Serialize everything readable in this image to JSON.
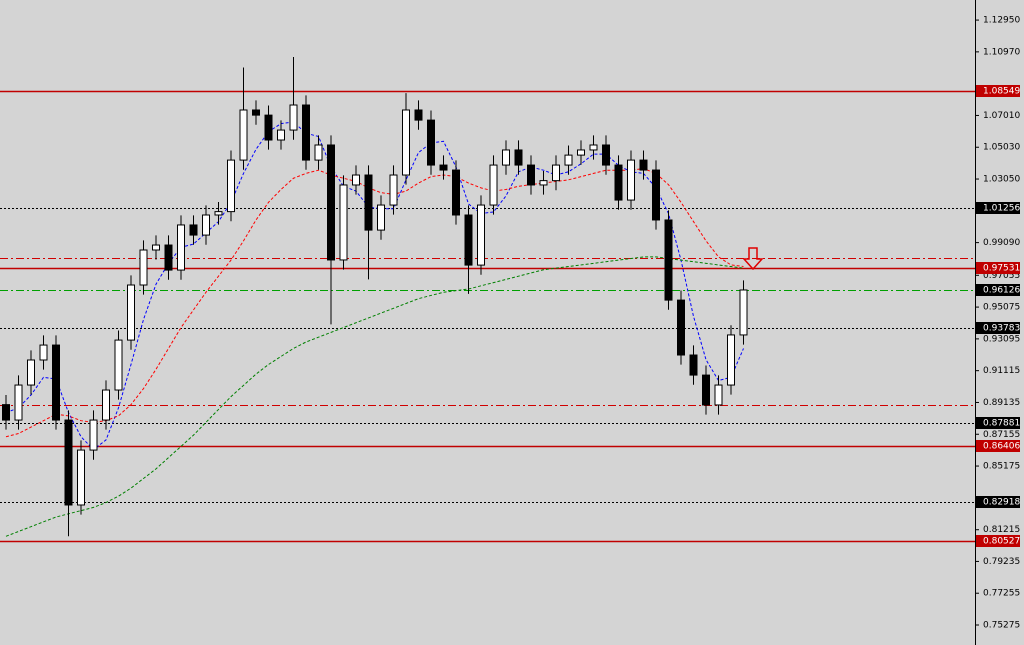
{
  "chart_data": {
    "type": "candlestick",
    "ylim": [
      0.7403,
      1.142
    ],
    "yticks": [
      {
        "value": 1.1295,
        "label": "1.12950"
      },
      {
        "value": 1.1097,
        "label": "1.10970"
      },
      {
        "value": 1.0701,
        "label": "1.07010"
      },
      {
        "value": 1.0503,
        "label": "1.05030"
      },
      {
        "value": 1.0305,
        "label": "1.03050"
      },
      {
        "value": 0.9909,
        "label": "0.99090"
      },
      0.97055,
      0.95075,
      0.93095,
      0.91115,
      0.89135,
      0.87155,
      0.85175,
      {
        "value": 0.8121,
        "label": "0.81215"
      },
      0.79235,
      0.77255,
      0.75275
    ],
    "bull_color": "#ffffff",
    "bear_color": "#000000",
    "open": [
      0.89,
      0.8804,
      0.9022,
      0.9178,
      0.9271,
      0.8804,
      0.8275,
      0.8617,
      0.8804,
      0.8991,
      0.9302,
      0.9645,
      0.9863,
      0.9894,
      0.9738,
      1.0019,
      0.9956,
      1.0081,
      1.0102,
      1.0423,
      1.0735,
      1.0703,
      1.0548,
      1.061,
      1.0766,
      1.0423,
      1.0517,
      0.9801,
      1.0268,
      1.033,
      0.9987,
      1.0143,
      1.033,
      1.0735,
      1.0672,
      1.0392,
      1.0361,
      1.0081,
      0.9769,
      1.0143,
      1.0392,
      1.0486,
      1.0392,
      1.0268,
      1.0295,
      1.0392,
      1.0454,
      1.0486,
      1.0517,
      1.0392,
      1.0174,
      1.0423,
      1.0361,
      1.005,
      0.9551,
      0.9209,
      0.9084,
      0.8898,
      0.9022,
      0.9334
    ],
    "high": [
      0.896,
      0.9082,
      0.9238,
      0.9331,
      0.9331,
      0.8864,
      0.8677,
      0.8864,
      0.9051,
      0.9362,
      0.9705,
      0.9923,
      0.9954,
      0.9954,
      1.0079,
      1.0079,
      1.0141,
      1.0162,
      1.0483,
      1.1,
      1.0795,
      1.0763,
      1.067,
      1.1065,
      1.0826,
      1.0577,
      1.0577,
      1.0328,
      1.039,
      1.039,
      1.0203,
      1.039,
      1.084,
      1.0795,
      1.0732,
      1.0452,
      1.0421,
      1.0141,
      1.0203,
      1.0452,
      1.0546,
      1.0546,
      1.0452,
      1.0355,
      1.0452,
      1.0514,
      1.0546,
      1.0577,
      1.0577,
      1.0452,
      1.0483,
      1.0483,
      1.0421,
      1.011,
      0.9611,
      0.9269,
      0.9144,
      0.9082,
      0.9394,
      0.9674
    ],
    "low": [
      0.8744,
      0.8744,
      0.8962,
      0.9118,
      0.8744,
      0.808,
      0.8215,
      0.8557,
      0.8744,
      0.8931,
      0.9242,
      0.9585,
      0.9803,
      0.9678,
      0.9678,
      0.9896,
      0.9896,
      1.0021,
      1.0042,
      1.0363,
      1.0643,
      1.0488,
      1.0488,
      1.055,
      1.0363,
      1.0363,
      0.94,
      0.9741,
      1.0208,
      0.968,
      0.9927,
      1.0083,
      1.027,
      1.0612,
      1.0332,
      1.0301,
      1.0021,
      0.959,
      0.9709,
      1.0083,
      1.0332,
      1.0332,
      1.0208,
      1.0208,
      1.0235,
      1.0332,
      1.0394,
      1.0426,
      1.0332,
      1.0114,
      1.0114,
      1.0301,
      0.999,
      0.9491,
      0.9149,
      0.9024,
      0.8838,
      0.8838,
      0.8962,
      0.9274
    ],
    "close": [
      0.8804,
      0.9022,
      0.9178,
      0.9271,
      0.8804,
      0.8275,
      0.8617,
      0.8804,
      0.8991,
      0.9302,
      0.9645,
      0.9863,
      0.9894,
      0.9738,
      1.0019,
      0.9956,
      1.0081,
      1.0102,
      1.0423,
      1.0735,
      1.0703,
      1.0548,
      1.061,
      1.0766,
      1.0423,
      1.0517,
      0.9801,
      1.0268,
      1.033,
      0.9987,
      1.0143,
      1.033,
      1.0735,
      1.0672,
      1.0392,
      1.0361,
      1.0081,
      0.9769,
      1.0143,
      1.0392,
      1.0486,
      1.0392,
      1.0268,
      1.0295,
      1.0392,
      1.0454,
      1.0486,
      1.0517,
      1.0392,
      1.0174,
      1.0423,
      1.0361,
      1.005,
      0.9551,
      0.9209,
      0.9084,
      0.8898,
      0.9022,
      0.9334,
      0.9614
    ],
    "series": [
      {
        "color": "#0000ff",
        "values": [
          0.885,
          0.888,
          0.896,
          0.907,
          0.906,
          0.885,
          0.87,
          0.862,
          0.868,
          0.888,
          0.915,
          0.943,
          0.965,
          0.978,
          0.988,
          0.99,
          0.997,
          1.004,
          1.016,
          1.034,
          1.049,
          1.06,
          1.065,
          1.066,
          1.059,
          1.057,
          1.038,
          1.026,
          1.023,
          1.013,
          1.012,
          1.012,
          1.03,
          1.047,
          1.053,
          1.054,
          1.038,
          1.015,
          1.009,
          1.01,
          1.02,
          1.035,
          1.038,
          1.036,
          1.033,
          1.035,
          1.04,
          1.046,
          1.046,
          1.039,
          1.035,
          1.034,
          1.025,
          1.009,
          0.98,
          0.945,
          0.918,
          0.905,
          0.907,
          0.925
        ]
      },
      {
        "color": "#ff0000",
        "values": [
          0.87,
          0.872,
          0.876,
          0.88,
          0.884,
          0.883,
          0.88,
          0.879,
          0.88,
          0.883,
          0.89,
          0.9,
          0.912,
          0.925,
          0.938,
          0.949,
          0.96,
          0.97,
          0.98,
          0.992,
          1.005,
          1.016,
          1.024,
          1.031,
          1.034,
          1.036,
          1.033,
          1.031,
          1.029,
          1.025,
          1.022,
          1.021,
          1.023,
          1.028,
          1.032,
          1.033,
          1.032,
          1.028,
          1.025,
          1.023,
          1.024,
          1.026,
          1.027,
          1.028,
          1.029,
          1.03,
          1.032,
          1.034,
          1.036,
          1.036,
          1.036,
          1.037,
          1.034,
          1.027,
          1.016,
          1.004,
          0.992,
          0.982,
          0.977,
          0.976
        ]
      },
      {
        "color": "#008000",
        "values": [
          0.808,
          0.811,
          0.814,
          0.817,
          0.82,
          0.822,
          0.824,
          0.826,
          0.829,
          0.833,
          0.838,
          0.844,
          0.85,
          0.857,
          0.864,
          0.871,
          0.879,
          0.887,
          0.895,
          0.902,
          0.909,
          0.915,
          0.92,
          0.925,
          0.929,
          0.932,
          0.935,
          0.938,
          0.941,
          0.944,
          0.947,
          0.95,
          0.953,
          0.956,
          0.958,
          0.96,
          0.961,
          0.962,
          0.964,
          0.966,
          0.968,
          0.97,
          0.972,
          0.974,
          0.975,
          0.976,
          0.977,
          0.978,
          0.979,
          0.98,
          0.981,
          0.982,
          0.982,
          0.981,
          0.98,
          0.979,
          0.978,
          0.977,
          0.976,
          0.975
        ]
      }
    ],
    "levels": [
      {
        "value": 1.08549,
        "color": "#c00000",
        "style": "solid"
      },
      {
        "value": 1.01256,
        "color": "#000000",
        "style": "dotted"
      },
      {
        "value": 0.9813,
        "color": "#d00000",
        "style": "dashdot"
      },
      {
        "value": 0.97531,
        "color": "#c00000",
        "style": "solid"
      },
      {
        "value": 0.96126,
        "color": "#00a000",
        "style": "dashdot"
      },
      {
        "value": 0.93783,
        "color": "#000000",
        "style": "dotted"
      },
      {
        "value": 0.8897,
        "color": "#d00000",
        "style": "dashdot"
      },
      {
        "value": 0.87881,
        "color": "#000000",
        "style": "dotted"
      },
      {
        "value": 0.86406,
        "color": "#c00000",
        "style": "solid"
      },
      {
        "value": 0.82918,
        "color": "#000000",
        "style": "dotted"
      },
      {
        "value": 0.80527,
        "color": "#c00000",
        "style": "solid"
      }
    ],
    "labeled_levels": [
      0,
      1,
      3,
      4,
      5,
      7,
      8,
      9,
      10
    ]
  }
}
